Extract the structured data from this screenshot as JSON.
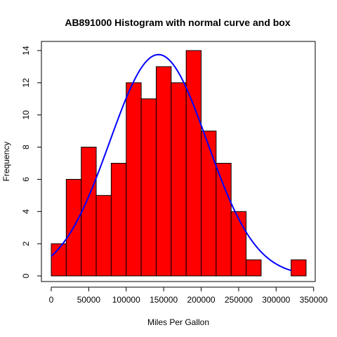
{
  "chart_data": {
    "type": "bar",
    "title": "AB891000 Histogram with normal curve and box",
    "xlabel": "Miles Per Gallon",
    "ylabel": "Frequency",
    "bin_width": 20000,
    "bins": [
      {
        "x0": 0,
        "x1": 20000,
        "count": 2
      },
      {
        "x0": 20000,
        "x1": 40000,
        "count": 6
      },
      {
        "x0": 40000,
        "x1": 60000,
        "count": 8
      },
      {
        "x0": 60000,
        "x1": 80000,
        "count": 5
      },
      {
        "x0": 80000,
        "x1": 100000,
        "count": 7
      },
      {
        "x0": 100000,
        "x1": 120000,
        "count": 12
      },
      {
        "x0": 120000,
        "x1": 140000,
        "count": 11
      },
      {
        "x0": 140000,
        "x1": 160000,
        "count": 13
      },
      {
        "x0": 160000,
        "x1": 180000,
        "count": 12
      },
      {
        "x0": 180000,
        "x1": 200000,
        "count": 14
      },
      {
        "x0": 200000,
        "x1": 220000,
        "count": 9
      },
      {
        "x0": 220000,
        "x1": 240000,
        "count": 7
      },
      {
        "x0": 240000,
        "x1": 260000,
        "count": 4
      },
      {
        "x0": 260000,
        "x1": 280000,
        "count": 1
      },
      {
        "x0": 280000,
        "x1": 300000,
        "count": 0
      },
      {
        "x0": 300000,
        "x1": 320000,
        "count": 0
      },
      {
        "x0": 320000,
        "x1": 340000,
        "count": 1
      }
    ],
    "normal_curve": {
      "mean": 143000,
      "sd": 65000,
      "x_from": 0,
      "x_to": 320000,
      "peak": 13.75
    },
    "xlim": [
      0,
      340000
    ],
    "ylim": [
      0,
      14
    ],
    "xticks": [
      0,
      50000,
      100000,
      150000,
      200000,
      250000,
      300000,
      350000
    ],
    "xtick_labels": [
      "0",
      "50000",
      "100000",
      "150000",
      "200000",
      "250000",
      "300000",
      "350000"
    ],
    "yticks": [
      0,
      2,
      4,
      6,
      8,
      10,
      12,
      14
    ],
    "ytick_labels": [
      "0",
      "2",
      "4",
      "6",
      "8",
      "10",
      "12",
      "14"
    ],
    "grid": false,
    "colors": {
      "bar_fill": "#ff0000",
      "bar_stroke": "#000000",
      "curve": "#0000ff",
      "axis": "#000000"
    }
  }
}
